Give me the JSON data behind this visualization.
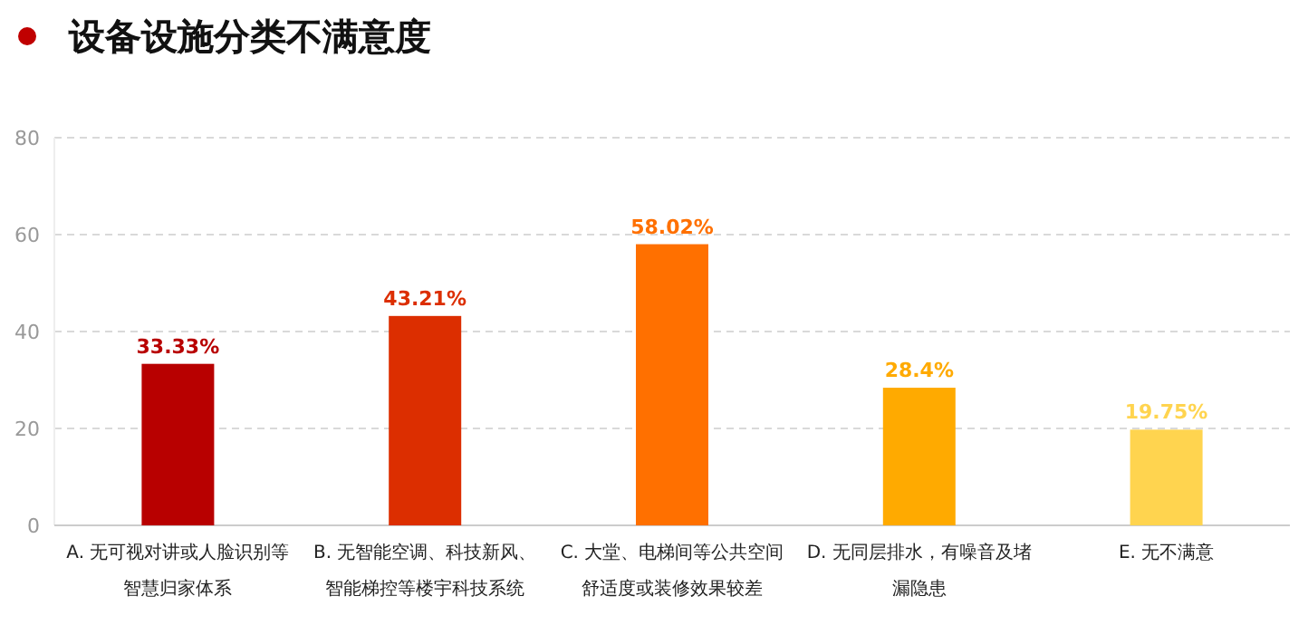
{
  "chart_data": {
    "type": "bar",
    "title": "设备设施分类不满意度",
    "categories": [
      "A. 无可视对讲或人脸识别等智慧归家体系",
      "B. 无智能空调、科技新风、智能梯控等楼宇科技系统",
      "C. 大堂、电梯间等公共空间舒适度或装修效果较差",
      "D. 无同层排水，有噪音及堵漏隐患",
      "E. 无不满意"
    ],
    "values": [
      33.33,
      43.21,
      58.02,
      28.4,
      19.75
    ],
    "value_labels": [
      "33.33%",
      "43.21%",
      "58.02%",
      "28.4%",
      "19.75%"
    ],
    "colors": [
      "#b80000",
      "#dc2e00",
      "#ff7000",
      "#ffaa00",
      "#ffd44f"
    ],
    "ylim": [
      0,
      80
    ],
    "yticks": [
      0,
      20,
      40,
      60,
      80
    ],
    "grid": "y"
  }
}
